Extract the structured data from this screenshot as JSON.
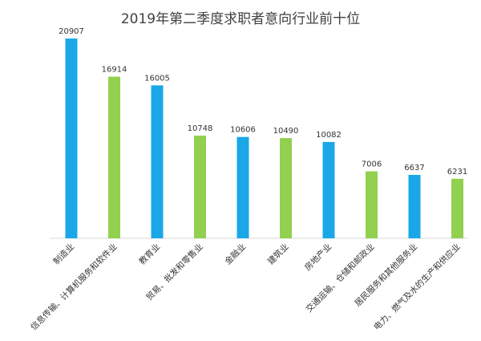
{
  "chart_data": {
    "type": "bar",
    "title": "2019年第二季度求职者意向行业前十位",
    "categories": [
      "制造业",
      "信息传输、计算机服务和软件业",
      "教育业",
      "贸易、批发和零售业",
      "金融业",
      "建筑业",
      "房地产业",
      "交通运输、仓储和邮政业",
      "居民服务和其他服务业",
      "电力、燃气及水的生产和供应业"
    ],
    "values": [
      20907,
      16914,
      16005,
      10748,
      10606,
      10490,
      10082,
      7006,
      6637,
      6231
    ],
    "bar_colors": [
      "#1aa7e8",
      "#92d050",
      "#1aa7e8",
      "#92d050",
      "#1aa7e8",
      "#92d050",
      "#1aa7e8",
      "#92d050",
      "#1aa7e8",
      "#92d050"
    ],
    "ylim": [
      0,
      22000
    ],
    "grid": false,
    "legend": "none",
    "xlabel": "",
    "ylabel": ""
  }
}
